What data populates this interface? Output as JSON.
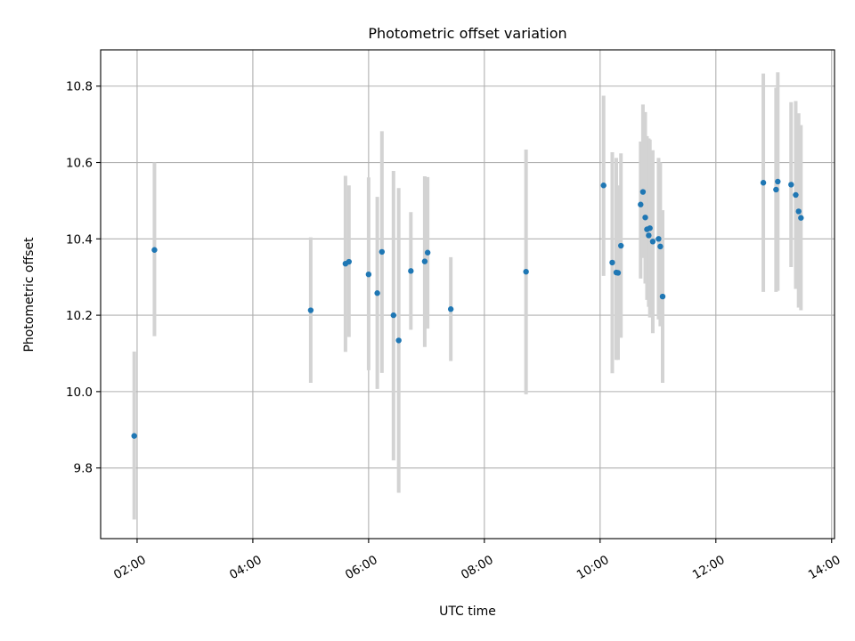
{
  "chart_data": {
    "type": "scatter",
    "title": "Photometric offset variation",
    "xlabel": "UTC time",
    "ylabel": "Photometric offset",
    "x_unit": "hours UTC",
    "xlim": [
      1.37,
      14.05
    ],
    "ylim": [
      9.615,
      10.895
    ],
    "x_ticks": [
      {
        "value": 2,
        "label": "02:00"
      },
      {
        "value": 4,
        "label": "04:00"
      },
      {
        "value": 6,
        "label": "06:00"
      },
      {
        "value": 8,
        "label": "08:00"
      },
      {
        "value": 10,
        "label": "10:00"
      },
      {
        "value": 12,
        "label": "12:00"
      },
      {
        "value": 14,
        "label": "14:00"
      }
    ],
    "y_ticks": [
      {
        "value": 9.8,
        "label": "9.8"
      },
      {
        "value": 10.0,
        "label": "10.0"
      },
      {
        "value": 10.2,
        "label": "10.2"
      },
      {
        "value": 10.4,
        "label": "10.4"
      },
      {
        "value": 10.6,
        "label": "10.6"
      },
      {
        "value": 10.8,
        "label": "10.8"
      }
    ],
    "grid": true,
    "marker_color": "#1f77b4",
    "errorbar_color": "#d3d3d3",
    "points": [
      {
        "x": 1.95,
        "y": 9.884,
        "lo": 9.665,
        "hi": 10.105
      },
      {
        "x": 2.3,
        "y": 10.371,
        "lo": 10.145,
        "hi": 10.6
      },
      {
        "x": 5.0,
        "y": 10.213,
        "lo": 10.023,
        "hi": 10.404
      },
      {
        "x": 5.6,
        "y": 10.335,
        "lo": 10.104,
        "hi": 10.565
      },
      {
        "x": 5.66,
        "y": 10.34,
        "lo": 10.143,
        "hi": 10.54
      },
      {
        "x": 6.0,
        "y": 10.307,
        "lo": 10.056,
        "hi": 10.561
      },
      {
        "x": 6.15,
        "y": 10.258,
        "lo": 10.007,
        "hi": 10.51
      },
      {
        "x": 6.23,
        "y": 10.366,
        "lo": 10.049,
        "hi": 10.682
      },
      {
        "x": 6.43,
        "y": 10.2,
        "lo": 9.82,
        "hi": 10.578
      },
      {
        "x": 6.52,
        "y": 10.134,
        "lo": 9.735,
        "hi": 10.533
      },
      {
        "x": 6.73,
        "y": 10.316,
        "lo": 10.162,
        "hi": 10.47
      },
      {
        "x": 6.97,
        "y": 10.341,
        "lo": 10.117,
        "hi": 10.564
      },
      {
        "x": 7.02,
        "y": 10.364,
        "lo": 10.165,
        "hi": 10.562
      },
      {
        "x": 7.42,
        "y": 10.216,
        "lo": 10.08,
        "hi": 10.352
      },
      {
        "x": 8.72,
        "y": 10.314,
        "lo": 9.993,
        "hi": 10.634
      },
      {
        "x": 10.06,
        "y": 10.54,
        "lo": 10.303,
        "hi": 10.775
      },
      {
        "x": 10.21,
        "y": 10.338,
        "lo": 10.048,
        "hi": 10.627
      },
      {
        "x": 10.28,
        "y": 10.312,
        "lo": 10.083,
        "hi": 10.612
      },
      {
        "x": 10.31,
        "y": 10.311,
        "lo": 10.083,
        "hi": 10.54
      },
      {
        "x": 10.36,
        "y": 10.382,
        "lo": 10.141,
        "hi": 10.624
      },
      {
        "x": 10.7,
        "y": 10.49,
        "lo": 10.296,
        "hi": 10.655
      },
      {
        "x": 10.74,
        "y": 10.523,
        "lo": 10.35,
        "hi": 10.752
      },
      {
        "x": 10.78,
        "y": 10.456,
        "lo": 10.283,
        "hi": 10.732
      },
      {
        "x": 10.81,
        "y": 10.425,
        "lo": 10.24,
        "hi": 10.669
      },
      {
        "x": 10.84,
        "y": 10.409,
        "lo": 10.222,
        "hi": 10.663
      },
      {
        "x": 10.86,
        "y": 10.428,
        "lo": 10.194,
        "hi": 10.66
      },
      {
        "x": 10.91,
        "y": 10.393,
        "lo": 10.153,
        "hi": 10.632
      },
      {
        "x": 11.01,
        "y": 10.4,
        "lo": 10.189,
        "hi": 10.612
      },
      {
        "x": 11.04,
        "y": 10.38,
        "lo": 10.171,
        "hi": 10.6
      },
      {
        "x": 11.08,
        "y": 10.249,
        "lo": 10.023,
        "hi": 10.475
      },
      {
        "x": 12.82,
        "y": 10.547,
        "lo": 10.261,
        "hi": 10.833
      },
      {
        "x": 13.04,
        "y": 10.529,
        "lo": 10.261,
        "hi": 10.796
      },
      {
        "x": 13.07,
        "y": 10.55,
        "lo": 10.264,
        "hi": 10.836
      },
      {
        "x": 13.3,
        "y": 10.542,
        "lo": 10.326,
        "hi": 10.758
      },
      {
        "x": 13.38,
        "y": 10.515,
        "lo": 10.269,
        "hi": 10.761
      },
      {
        "x": 13.43,
        "y": 10.472,
        "lo": 10.22,
        "hi": 10.729
      },
      {
        "x": 13.47,
        "y": 10.455,
        "lo": 10.213,
        "hi": 10.698
      }
    ]
  }
}
